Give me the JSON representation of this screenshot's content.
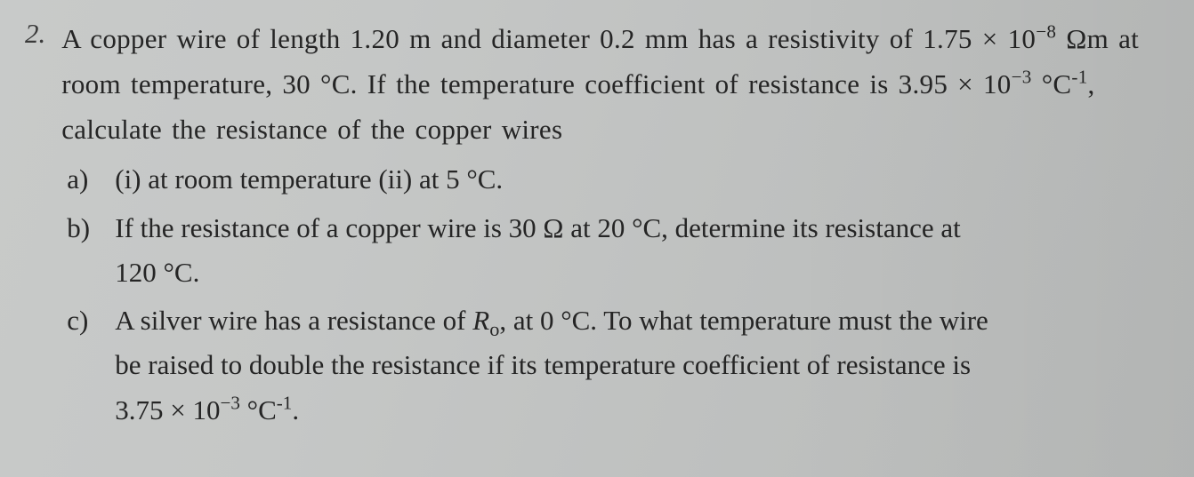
{
  "question": {
    "number": "2.",
    "intro_line1": "A copper wire of length 1.20 m and diameter 0.2 mm has a resistivity of",
    "intro_line2_pre": "1.75 × 10",
    "intro_line2_exp1": "−8",
    "intro_line2_mid": " Ωm at room temperature, 30 °C. If the temperature coefficient of",
    "intro_line3_pre": "resistance is 3.95 × 10",
    "intro_line3_exp": "−3",
    "intro_line3_mid": " °C",
    "intro_line3_exp2": "-1",
    "intro_line3_end": ", calculate the resistance of the copper wires",
    "parts": {
      "a": {
        "label": "a)",
        "text": "(i) at room temperature (ii) at 5 °C."
      },
      "b": {
        "label": "b)",
        "text1": "If the resistance of a copper wire is 30 Ω at 20 °C, determine its resistance at",
        "text2": "120 °C."
      },
      "c": {
        "label": "c)",
        "text1_pre": "A silver wire has a resistance of ",
        "text1_R": "R",
        "text1_sub": "o",
        "text1_post": ", at 0 °C. To what temperature must the wire",
        "text2": "be raised to double the resistance if its temperature coefficient of resistance is",
        "text3_pre": "3.75 × 10",
        "text3_exp": "−3",
        "text3_mid": " °C",
        "text3_exp2": "-1",
        "text3_end": "."
      }
    }
  },
  "style": {
    "background_gradient": [
      "#c8cac9",
      "#b8bab9"
    ],
    "text_color": "#252525",
    "font_family": "Times New Roman",
    "font_size_pt": 31,
    "line_height": 1.65
  }
}
